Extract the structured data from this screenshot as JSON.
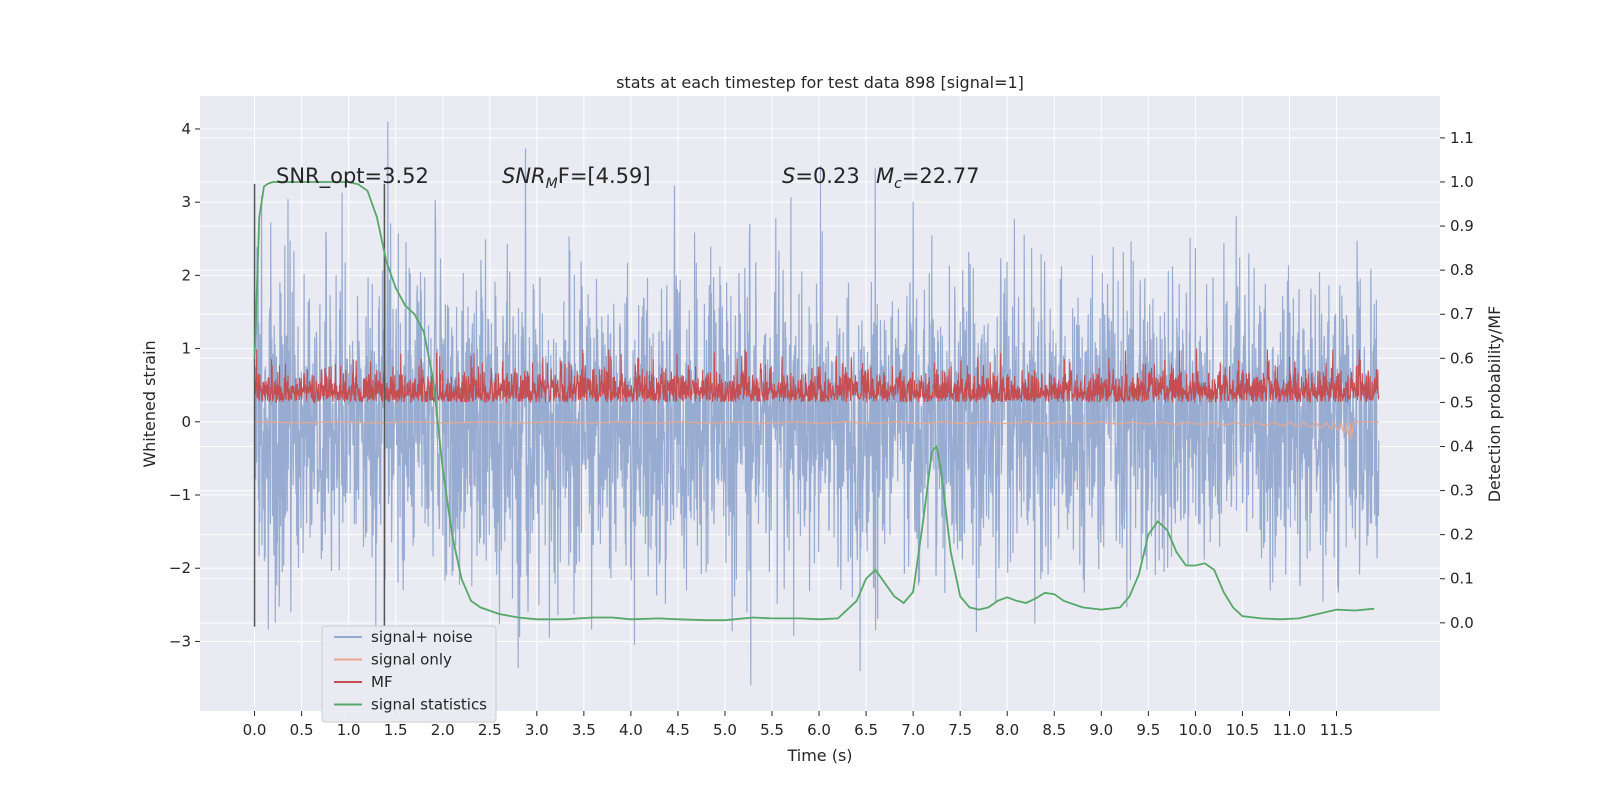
{
  "chart_data": {
    "type": "line",
    "title": "stats at each timestep for test data 898 [signal=1]",
    "xlabel": "Time (s)",
    "ylabel": "Whitened strain",
    "y2label": "Detection probability/MF",
    "xlim": [
      -0.58,
      12.6
    ],
    "ylim": [
      -3.95,
      4.45
    ],
    "y2lim": [
      -0.2,
      1.195
    ],
    "xticks": [
      "0.0",
      "0.5",
      "1.0",
      "1.5",
      "2.0",
      "2.5",
      "3.0",
      "3.5",
      "4.0",
      "4.5",
      "5.0",
      "5.5",
      "6.0",
      "6.5",
      "7.0",
      "7.5",
      "8.0",
      "8.5",
      "9.0",
      "9.5",
      "10.0",
      "10.5",
      "11.0",
      "11.5"
    ],
    "yticks": [
      "4",
      "3",
      "2",
      "1",
      "0",
      "−1",
      "−2",
      "−3"
    ],
    "y2ticks": [
      "1.1",
      "1.0",
      "0.9",
      "0.8",
      "0.7",
      "0.6",
      "0.5",
      "0.4",
      "0.3",
      "0.2",
      "0.1",
      "0.0"
    ],
    "annotations": {
      "snr_opt": "SNR_opt=3.52",
      "snr_mf_sym": "SNR",
      "snr_mf_sub": "M",
      "snr_mf_rest": "F=[4.59]",
      "s_sym": "S",
      "s_val": "=0.23",
      "mc_sym": "M",
      "mc_sub": "c",
      "mc_val": "=22.77"
    },
    "vlines": [
      {
        "x": 0.0,
        "y": [
          -2.8,
          3.25
        ]
      },
      {
        "x": 1.38,
        "y": [
          -2.8,
          3.25
        ]
      }
    ],
    "legend": {
      "position": "lower-left",
      "entries": [
        {
          "label": "signal+ noise",
          "color": "#94a9cf"
        },
        {
          "label": "signal only",
          "color": "#e8a78f"
        },
        {
          "label": "MF",
          "color": "#c44e52"
        },
        {
          "label": "signal statistics",
          "color": "#55a868"
        }
      ]
    },
    "series": [
      {
        "name": "signal statistics",
        "axis": "right",
        "color": "#55a868",
        "x": [
          0.0,
          0.05,
          0.1,
          0.15,
          0.2,
          0.3,
          0.5,
          0.8,
          1.0,
          1.1,
          1.2,
          1.3,
          1.4,
          1.5,
          1.6,
          1.7,
          1.8,
          1.9,
          2.0,
          2.1,
          2.2,
          2.3,
          2.4,
          2.6,
          2.8,
          3.0,
          3.3,
          3.6,
          3.8,
          4.0,
          4.3,
          4.5,
          4.8,
          5.0,
          5.3,
          5.5,
          5.8,
          6.0,
          6.2,
          6.4,
          6.5,
          6.6,
          6.7,
          6.8,
          6.9,
          7.0,
          7.1,
          7.2,
          7.25,
          7.3,
          7.4,
          7.5,
          7.6,
          7.7,
          7.8,
          7.9,
          8.0,
          8.1,
          8.2,
          8.3,
          8.4,
          8.5,
          8.6,
          8.8,
          9.0,
          9.2,
          9.3,
          9.4,
          9.5,
          9.6,
          9.7,
          9.8,
          9.9,
          10.0,
          10.1,
          10.2,
          10.3,
          10.4,
          10.5,
          10.7,
          10.9,
          11.1,
          11.3,
          11.5,
          11.7,
          11.9
        ],
        "y": [
          0.6,
          0.92,
          0.99,
          0.997,
          1.0,
          1.0,
          1.0,
          1.0,
          1.0,
          0.995,
          0.98,
          0.92,
          0.82,
          0.76,
          0.72,
          0.7,
          0.66,
          0.55,
          0.35,
          0.2,
          0.1,
          0.05,
          0.035,
          0.02,
          0.012,
          0.008,
          0.008,
          0.012,
          0.012,
          0.008,
          0.01,
          0.008,
          0.006,
          0.006,
          0.012,
          0.01,
          0.01,
          0.008,
          0.01,
          0.05,
          0.1,
          0.12,
          0.09,
          0.06,
          0.045,
          0.07,
          0.22,
          0.39,
          0.4,
          0.34,
          0.16,
          0.06,
          0.035,
          0.03,
          0.035,
          0.05,
          0.058,
          0.05,
          0.045,
          0.055,
          0.068,
          0.065,
          0.05,
          0.035,
          0.03,
          0.035,
          0.06,
          0.11,
          0.2,
          0.23,
          0.21,
          0.16,
          0.13,
          0.13,
          0.135,
          0.12,
          0.07,
          0.035,
          0.015,
          0.01,
          0.008,
          0.01,
          0.02,
          0.03,
          0.028,
          0.032
        ]
      }
    ]
  }
}
